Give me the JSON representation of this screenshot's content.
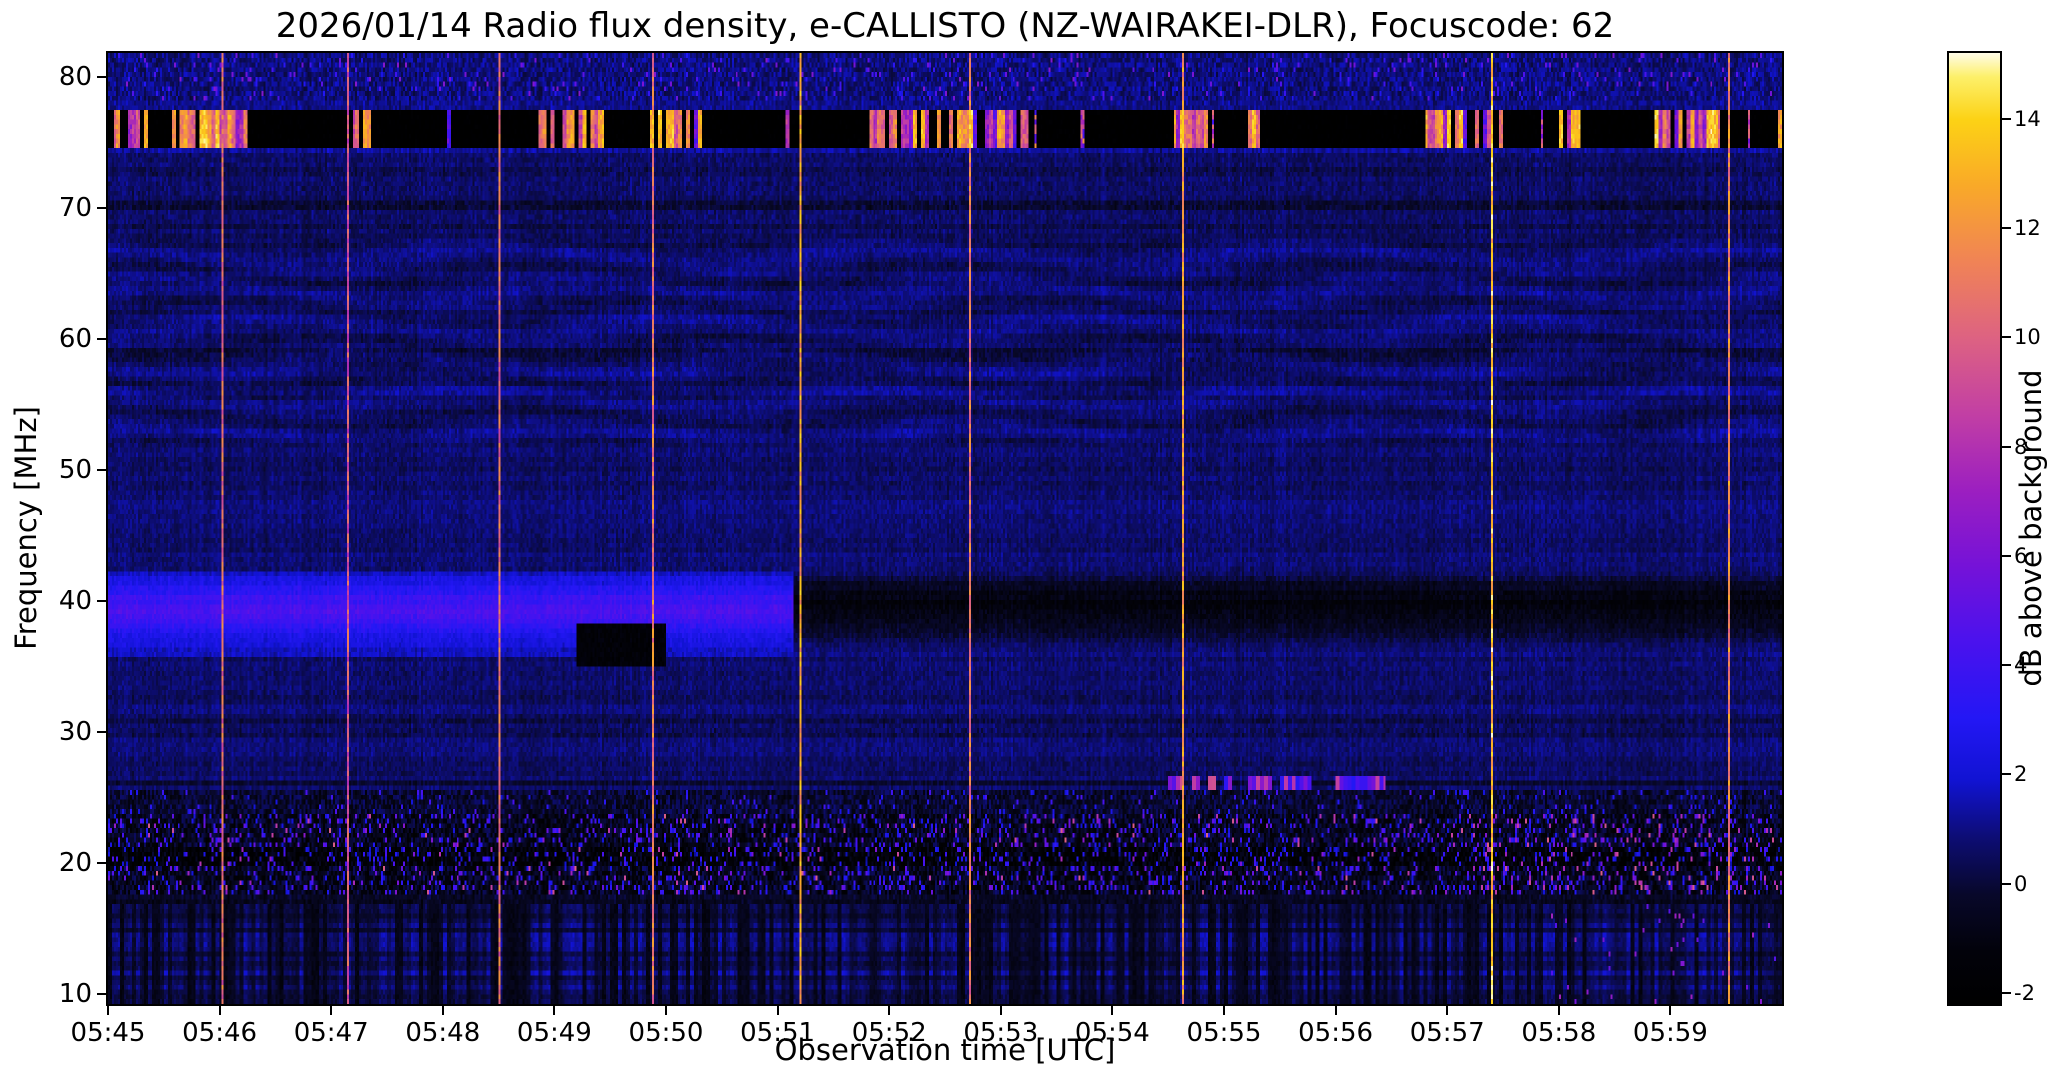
{
  "figure": {
    "background": "#ffffff"
  },
  "chart_data": {
    "type": "heatmap",
    "title": "2026/01/14  Radio flux density, e-CALLISTO (NZ-WAIRAKEI-DLR), Focuscode: 62",
    "date": "2026/01/14",
    "station": "NZ-WAIRAKEI-DLR",
    "focuscode": "62",
    "xlabel": "Observation time [UTC]",
    "ylabel": "Frequency [MHz]",
    "x_tick_labels": [
      "05:45",
      "05:46",
      "05:47",
      "05:48",
      "05:49",
      "05:50",
      "05:51",
      "05:52",
      "05:53",
      "05:54",
      "05:55",
      "05:56",
      "05:57",
      "05:58",
      "05:59"
    ],
    "x_tick_minutes": [
      0,
      1,
      2,
      3,
      4,
      5,
      6,
      7,
      8,
      9,
      10,
      11,
      12,
      13,
      14
    ],
    "x_range_minutes": [
      0,
      15
    ],
    "y_tick_values": [
      10,
      20,
      30,
      40,
      50,
      60,
      70,
      80
    ],
    "y_range_mhz": [
      9.2,
      81.8
    ],
    "grid": false,
    "colorbar": {
      "label": "dB above background",
      "tick_values": [
        -2,
        0,
        2,
        4,
        6,
        8,
        10,
        12,
        14
      ],
      "value_range_db": [
        -2.2,
        15.2
      ],
      "colormap_stops": [
        [
          0.0,
          "#000000"
        ],
        [
          0.055,
          "#02020a"
        ],
        [
          0.115,
          "#08082a"
        ],
        [
          0.175,
          "#0d0d74"
        ],
        [
          0.235,
          "#1113d2"
        ],
        [
          0.3,
          "#2317f5"
        ],
        [
          0.38,
          "#4a12ee"
        ],
        [
          0.46,
          "#7512d8"
        ],
        [
          0.54,
          "#9c1fc0"
        ],
        [
          0.62,
          "#c23fa4"
        ],
        [
          0.7,
          "#dd6282"
        ],
        [
          0.78,
          "#f08356"
        ],
        [
          0.86,
          "#f9a928"
        ],
        [
          0.93,
          "#fcd215"
        ],
        [
          0.975,
          "#fdf06a"
        ],
        [
          1.0,
          "#fffce8"
        ]
      ]
    },
    "spectrogram": {
      "seed": 20260114,
      "grid": {
        "cols": 840,
        "rows": 200
      },
      "background_db": {
        "base": 0.75,
        "noise": 0.9
      },
      "features": [
        {
          "kind": "hband",
          "name": "upper-band-softening",
          "freq": [
            68.0,
            74.7
          ],
          "level": -0.25,
          "jitter": 0.2
        },
        {
          "kind": "hband",
          "name": "dark-line-70mhz",
          "freq": [
            69.8,
            70.7
          ],
          "level": -0.45,
          "jitter": 0.2
        },
        {
          "kind": "ripples",
          "name": "mid-band-mottling",
          "freq": [
            52.0,
            67.5
          ],
          "amp": 0.5
        },
        {
          "kind": "hband",
          "name": "dark-line-59mhz",
          "freq": [
            58.3,
            59.4
          ],
          "level": -0.4,
          "jitter": 0.2
        },
        {
          "kind": "hband",
          "name": "dark-line-30mhz",
          "freq": [
            29.4,
            31.0
          ],
          "level": -0.3,
          "jitter": 0.2
        },
        {
          "kind": "band_time",
          "name": "bright-blue-band-39mhz",
          "freq": [
            35.8,
            42.4
          ],
          "time": [
            0,
            6.15
          ],
          "center": 39.3,
          "sigma": 1.7,
          "peak": 3.1,
          "floor": 0.4
        },
        {
          "kind": "band_time",
          "name": "dark-band-39mhz-after-0551",
          "freq": [
            36.6,
            42.0
          ],
          "time": [
            6.15,
            15
          ],
          "center": 39.6,
          "sigma": 1.5,
          "peak": -1.8,
          "floor": -0.1
        },
        {
          "kind": "rect",
          "name": "dark-patch-0549",
          "time": [
            4.2,
            5.0
          ],
          "freq": [
            34.8,
            38.4
          ],
          "level": -1.5,
          "jitter": 0.5
        },
        {
          "kind": "thin_line",
          "name": "dark-line-26mhz",
          "freq": [
            25.75,
            26.4
          ],
          "level": -0.7
        },
        {
          "kind": "dashes",
          "name": "bright-dashes-26mhz",
          "freq": [
            25.65,
            26.5
          ],
          "time": [
            9.5,
            11.45
          ],
          "prob": 0.62,
          "level": [
            3.0,
            9.5
          ]
        },
        {
          "kind": "speckle_region",
          "name": "speckle-zone-24mhz",
          "freq": [
            23.6,
            25.65
          ],
          "base": -0.15,
          "jitter": 1.0,
          "speckle_prob": 0.05,
          "speckle_level": [
            2.0,
            4.5
          ]
        },
        {
          "kind": "speckle_region",
          "name": "speckle-zone-18-23mhz",
          "freq": [
            17.6,
            23.6
          ],
          "base": -0.65,
          "jitter": 1.3,
          "speckle_prob": 0.13,
          "speckle_level": [
            2.0,
            5.5
          ],
          "pink_prob": 0.02,
          "pink_level": [
            5.5,
            10.0
          ],
          "pink_boost_after": 12.2,
          "pink_boost": 0.05
        },
        {
          "kind": "hband",
          "name": "dark-band-20mhz",
          "freq": [
            19.7,
            21.2
          ],
          "level": -0.9,
          "jitter": 0.4
        },
        {
          "kind": "hband",
          "name": "dark-band-17mhz",
          "freq": [
            16.8,
            17.6
          ],
          "level": -1.3,
          "jitter": 0.3
        },
        {
          "kind": "column_stripes",
          "name": "striped-noise-10-17mhz",
          "freq": [
            9.2,
            16.8
          ],
          "base": -0.95,
          "amp": 2.7,
          "rowmod": 0.85,
          "pink_prob": 0.018,
          "pink_level": [
            4.5,
            7.5
          ],
          "pink_after": 12.8
        },
        {
          "kind": "rfi_black_band",
          "name": "rfi-blackout-76mhz",
          "freq": [
            74.7,
            77.35
          ],
          "level": -2.15,
          "jitter": 0.25
        },
        {
          "kind": "rfi_bursts",
          "name": "rfi-bursts-76mhz",
          "freq": [
            74.7,
            77.35
          ],
          "density": 0.7,
          "level": [
            6.0,
            15.2
          ],
          "stray_prob": 0.012,
          "intervals": [
            [
              0.05,
              0.35
            ],
            [
              0.55,
              1.25
            ],
            [
              2.2,
              2.35
            ],
            [
              3.0,
              3.1
            ],
            [
              3.85,
              4.45
            ],
            [
              4.85,
              5.35
            ],
            [
              6.0,
              6.15
            ],
            [
              6.8,
              8.25
            ],
            [
              9.55,
              9.85
            ],
            [
              10.2,
              10.4
            ],
            [
              11.8,
              12.6
            ],
            [
              13.0,
              13.2
            ],
            [
              13.85,
              14.45
            ],
            [
              14.85,
              15.0
            ]
          ]
        },
        {
          "kind": "hband",
          "name": "bright-edge-below-76mhz",
          "freq": [
            74.0,
            74.7
          ],
          "level": 0.7,
          "jitter": 0.3
        },
        {
          "kind": "hband",
          "name": "bright-edge-above-76mhz",
          "freq": [
            77.35,
            78.0
          ],
          "level": 0.55,
          "jitter": 0.3
        },
        {
          "kind": "speckle_region",
          "name": "top-edge-noise-78-82mhz",
          "freq": [
            78.0,
            81.8
          ],
          "base": 0.95,
          "jitter": 0.8,
          "speckle_prob": 0.05,
          "speckle_level": [
            2.5,
            6.5
          ]
        },
        {
          "kind": "cal_lines",
          "name": "vertical-calibration-lines",
          "times": [
            1.02,
            2.15,
            3.5,
            4.88,
            6.2,
            7.72,
            9.63,
            12.4,
            14.52
          ],
          "levels": [
            10.5,
            9.5,
            10.5,
            11.0,
            12.5,
            11.0,
            12.0,
            13.5,
            11.5
          ],
          "jitter": 3.5
        }
      ]
    }
  }
}
